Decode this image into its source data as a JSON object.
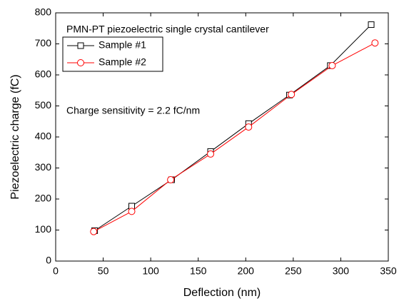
{
  "chart_data": {
    "type": "line",
    "annotations": [
      "PMN-PT piezoelectric single crystal cantilever",
      "Charge sensitivity = 2.2 fC/nm"
    ],
    "x_label": "Deflection (nm)",
    "y_label": "Piezoelectric charge (fC)",
    "xlim": [
      0,
      350
    ],
    "xticks": [
      0,
      50,
      100,
      150,
      200,
      250,
      300,
      350
    ],
    "ylim": [
      0,
      800
    ],
    "yticks": [
      0,
      100,
      200,
      300,
      400,
      500,
      600,
      700,
      800
    ],
    "legend": "upper left",
    "series": [
      {
        "name": "Sample #1",
        "color": "#000000",
        "marker": "square",
        "x": [
          41,
          80,
          122,
          163,
          203,
          246,
          289,
          332
        ],
        "values": [
          98,
          177,
          262,
          353,
          443,
          535,
          630,
          762
        ]
      },
      {
        "name": "Sample #2",
        "color": "#ff0000",
        "marker": "circle",
        "x": [
          40,
          80,
          121,
          163,
          203,
          248,
          291,
          336
        ],
        "values": [
          95,
          160,
          262,
          345,
          432,
          537,
          630,
          703
        ]
      }
    ]
  }
}
